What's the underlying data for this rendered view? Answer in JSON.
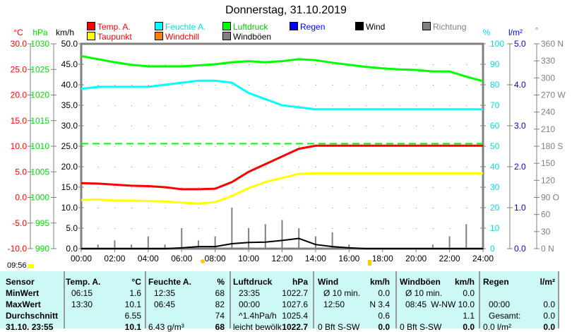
{
  "title": "Donnerstag, 31.10.2019",
  "legend": [
    {
      "label": "Temp. A.",
      "color": "#ff0000",
      "text_color": "#ff0000"
    },
    {
      "label": "Feuchte A.",
      "color": "#00ffff",
      "text_color": "#00e0e0"
    },
    {
      "label": "Luftdruck",
      "color": "#00ff00",
      "text_color": "#00cc00"
    },
    {
      "label": "Regen",
      "color": "#0000ff",
      "text_color": "#0000ff"
    },
    {
      "label": "Wind",
      "color": "#000000",
      "text_color": "#000000"
    },
    {
      "label": "Richtung",
      "color": "#808080",
      "text_color": "#808080"
    },
    {
      "label": "Taupunkt",
      "color": "#ffff00",
      "text_color": "#ff0000"
    },
    {
      "label": "Windchill",
      "color": "#ff8000",
      "text_color": "#ff0000"
    },
    {
      "label": "Windböen",
      "color": "#808080",
      "text_color": "#000000"
    }
  ],
  "axes": {
    "temp": {
      "unit": "°C",
      "ticks": [
        "30.0",
        "25.0",
        "20.0",
        "15.0",
        "10.0",
        "5.0",
        "0.0",
        "-5.0",
        "-10.0"
      ]
    },
    "pressure": {
      "unit": "hPa",
      "ticks": [
        "1030",
        "1025",
        "1020",
        "1015",
        "1010",
        "1005",
        "1000",
        "995",
        "990"
      ]
    },
    "wind": {
      "unit": "km/h",
      "ticks": [
        "50.0",
        "45.0",
        "40.0",
        "35.0",
        "30.0",
        "25.0",
        "20.0",
        "15.0",
        "10.0",
        "5.0",
        "0.0"
      ]
    },
    "humidity": {
      "unit": "%",
      "ticks": [
        "100",
        "90",
        "80",
        "70",
        "60",
        "50",
        "40",
        "30",
        "20",
        "10",
        "0"
      ]
    },
    "rain": {
      "unit": "l/m²",
      "ticks": [
        "5.0",
        "4.0",
        "3.0",
        "2.0",
        "1.0",
        "0.0"
      ]
    },
    "direction": {
      "unit": "°",
      "ticks": [
        "360 N",
        "330",
        "300",
        "270 W",
        "240",
        "210",
        "180 S",
        "150",
        "120",
        "90  O",
        "60",
        "30",
        "0   N"
      ]
    },
    "time": [
      "00:00",
      "02:00",
      "04:00",
      "06:00",
      "08:00",
      "10:00",
      "12:00",
      "14:00",
      "16:00",
      "18:00",
      "20:00",
      "22:00",
      "24:00"
    ]
  },
  "sunrise_time": "09:56",
  "chart_data": {
    "type": "line",
    "x_hours": [
      0,
      1,
      2,
      3,
      4,
      5,
      6,
      7,
      8,
      9,
      10,
      11,
      12,
      13,
      14,
      15,
      16,
      17,
      18,
      19,
      20,
      21,
      22,
      23,
      24
    ],
    "series": [
      {
        "name": "Temp. A.",
        "unit": "°C",
        "color": "#ff0000",
        "values": [
          2.8,
          2.7,
          2.5,
          2.3,
          2.2,
          2.0,
          1.6,
          1.6,
          1.7,
          3.0,
          5.0,
          6.5,
          8.0,
          9.5,
          10.1,
          10.1,
          10.1,
          10.1,
          10.1,
          10.1,
          10.1,
          10.1,
          10.1,
          10.1,
          10.1
        ]
      },
      {
        "name": "Taupunkt",
        "unit": "°C",
        "color": "#ffff00",
        "values": [
          -0.5,
          -0.4,
          -0.6,
          -0.6,
          -0.7,
          -0.8,
          -1.0,
          -1.2,
          -0.9,
          0.3,
          1.8,
          3.0,
          3.8,
          4.6,
          4.7,
          4.7,
          4.7,
          4.7,
          4.7,
          4.7,
          4.7,
          4.7,
          4.7,
          4.7,
          4.7
        ]
      },
      {
        "name": "Feuchte A.",
        "unit": "%",
        "color": "#00ffff",
        "values": [
          78,
          79,
          79,
          79,
          79,
          80,
          81,
          82,
          82,
          81,
          76,
          73,
          70,
          69,
          68,
          68,
          68,
          68,
          68,
          68,
          68,
          68,
          68,
          68,
          68
        ]
      },
      {
        "name": "Luftdruck",
        "unit": "hPa",
        "color": "#00ff00",
        "values": [
          1027.6,
          1027.0,
          1026.4,
          1025.9,
          1025.6,
          1025.6,
          1025.6,
          1025.8,
          1026.0,
          1026.4,
          1026.6,
          1026.4,
          1026.6,
          1027.0,
          1026.8,
          1026.3,
          1025.9,
          1025.5,
          1025.2,
          1025.0,
          1024.9,
          1024.6,
          1024.6,
          1023.6,
          1022.7
        ]
      },
      {
        "name": "Wind",
        "unit": "km/h",
        "color": "#000000",
        "values": [
          0,
          0,
          0,
          0,
          0,
          0,
          0.2,
          0.5,
          0.5,
          1.2,
          1.5,
          1.6,
          2.0,
          2.5,
          1.0,
          0.5,
          0.2,
          0,
          0,
          0,
          0,
          0,
          0,
          0,
          0
        ]
      },
      {
        "name": "Windböen",
        "unit": "km/h",
        "color": "#808080",
        "values": [
          0.5,
          1,
          2,
          1,
          3,
          1,
          5,
          2,
          3,
          10,
          5,
          6,
          7,
          5,
          3,
          4,
          1,
          0,
          0,
          0,
          0,
          1,
          3,
          6,
          4
        ]
      }
    ],
    "reference_line": {
      "name": "Luftdruck (dashed)",
      "unit": "hPa",
      "value": 1010.5,
      "color": "#00ff00"
    },
    "ylim_temp": [
      -10,
      30
    ],
    "ylim_pressure": [
      990,
      1030
    ],
    "ylim_wind": [
      0,
      50
    ],
    "ylim_humidity": [
      0,
      100
    ],
    "ylim_rain": [
      0,
      5
    ],
    "ylim_direction": [
      0,
      360
    ],
    "xlim": [
      0,
      24
    ]
  },
  "table": {
    "headers": [
      "Sensor",
      "Temp. A.",
      "°C",
      "Feuchte A.",
      "%",
      "Luftdruck",
      "hPa",
      "Wind",
      "km/h",
      "Windböen",
      "km/h",
      "Regen",
      "l/m²"
    ],
    "rows": [
      {
        "label": "MinWert",
        "cells": [
          "06:15",
          "1.6",
          "12:35",
          "68",
          "23:35",
          "1022.7",
          "Ø 10 min.",
          "0.0",
          "Ø 10 min.",
          "0.0",
          "",
          ""
        ]
      },
      {
        "label": "MaxWert",
        "cells": [
          "13:30",
          "10.1",
          "06:45",
          "82",
          "00:00",
          "1027.6",
          "12:50",
          "N 3.4",
          "08:45",
          "W-NW 10.0",
          "00:00",
          "0.0"
        ]
      },
      {
        "label": "Durchschnitt",
        "cells": [
          "",
          "6.55",
          "",
          "74",
          "^1.4hPa/h",
          "1025.4",
          "",
          "0.6",
          "",
          "1.1",
          "Gesamt:",
          "0.0"
        ]
      },
      {
        "label": "31.10. 23:55",
        "cells": [
          "",
          "10.1",
          "6.43 g/m³",
          "68",
          "leicht bewölk",
          "1022.7",
          "0 Bft S-SW",
          "0.0",
          "0 Bft S-SW",
          "0.0",
          "0.0 l/m²",
          "0.0"
        ]
      }
    ]
  }
}
